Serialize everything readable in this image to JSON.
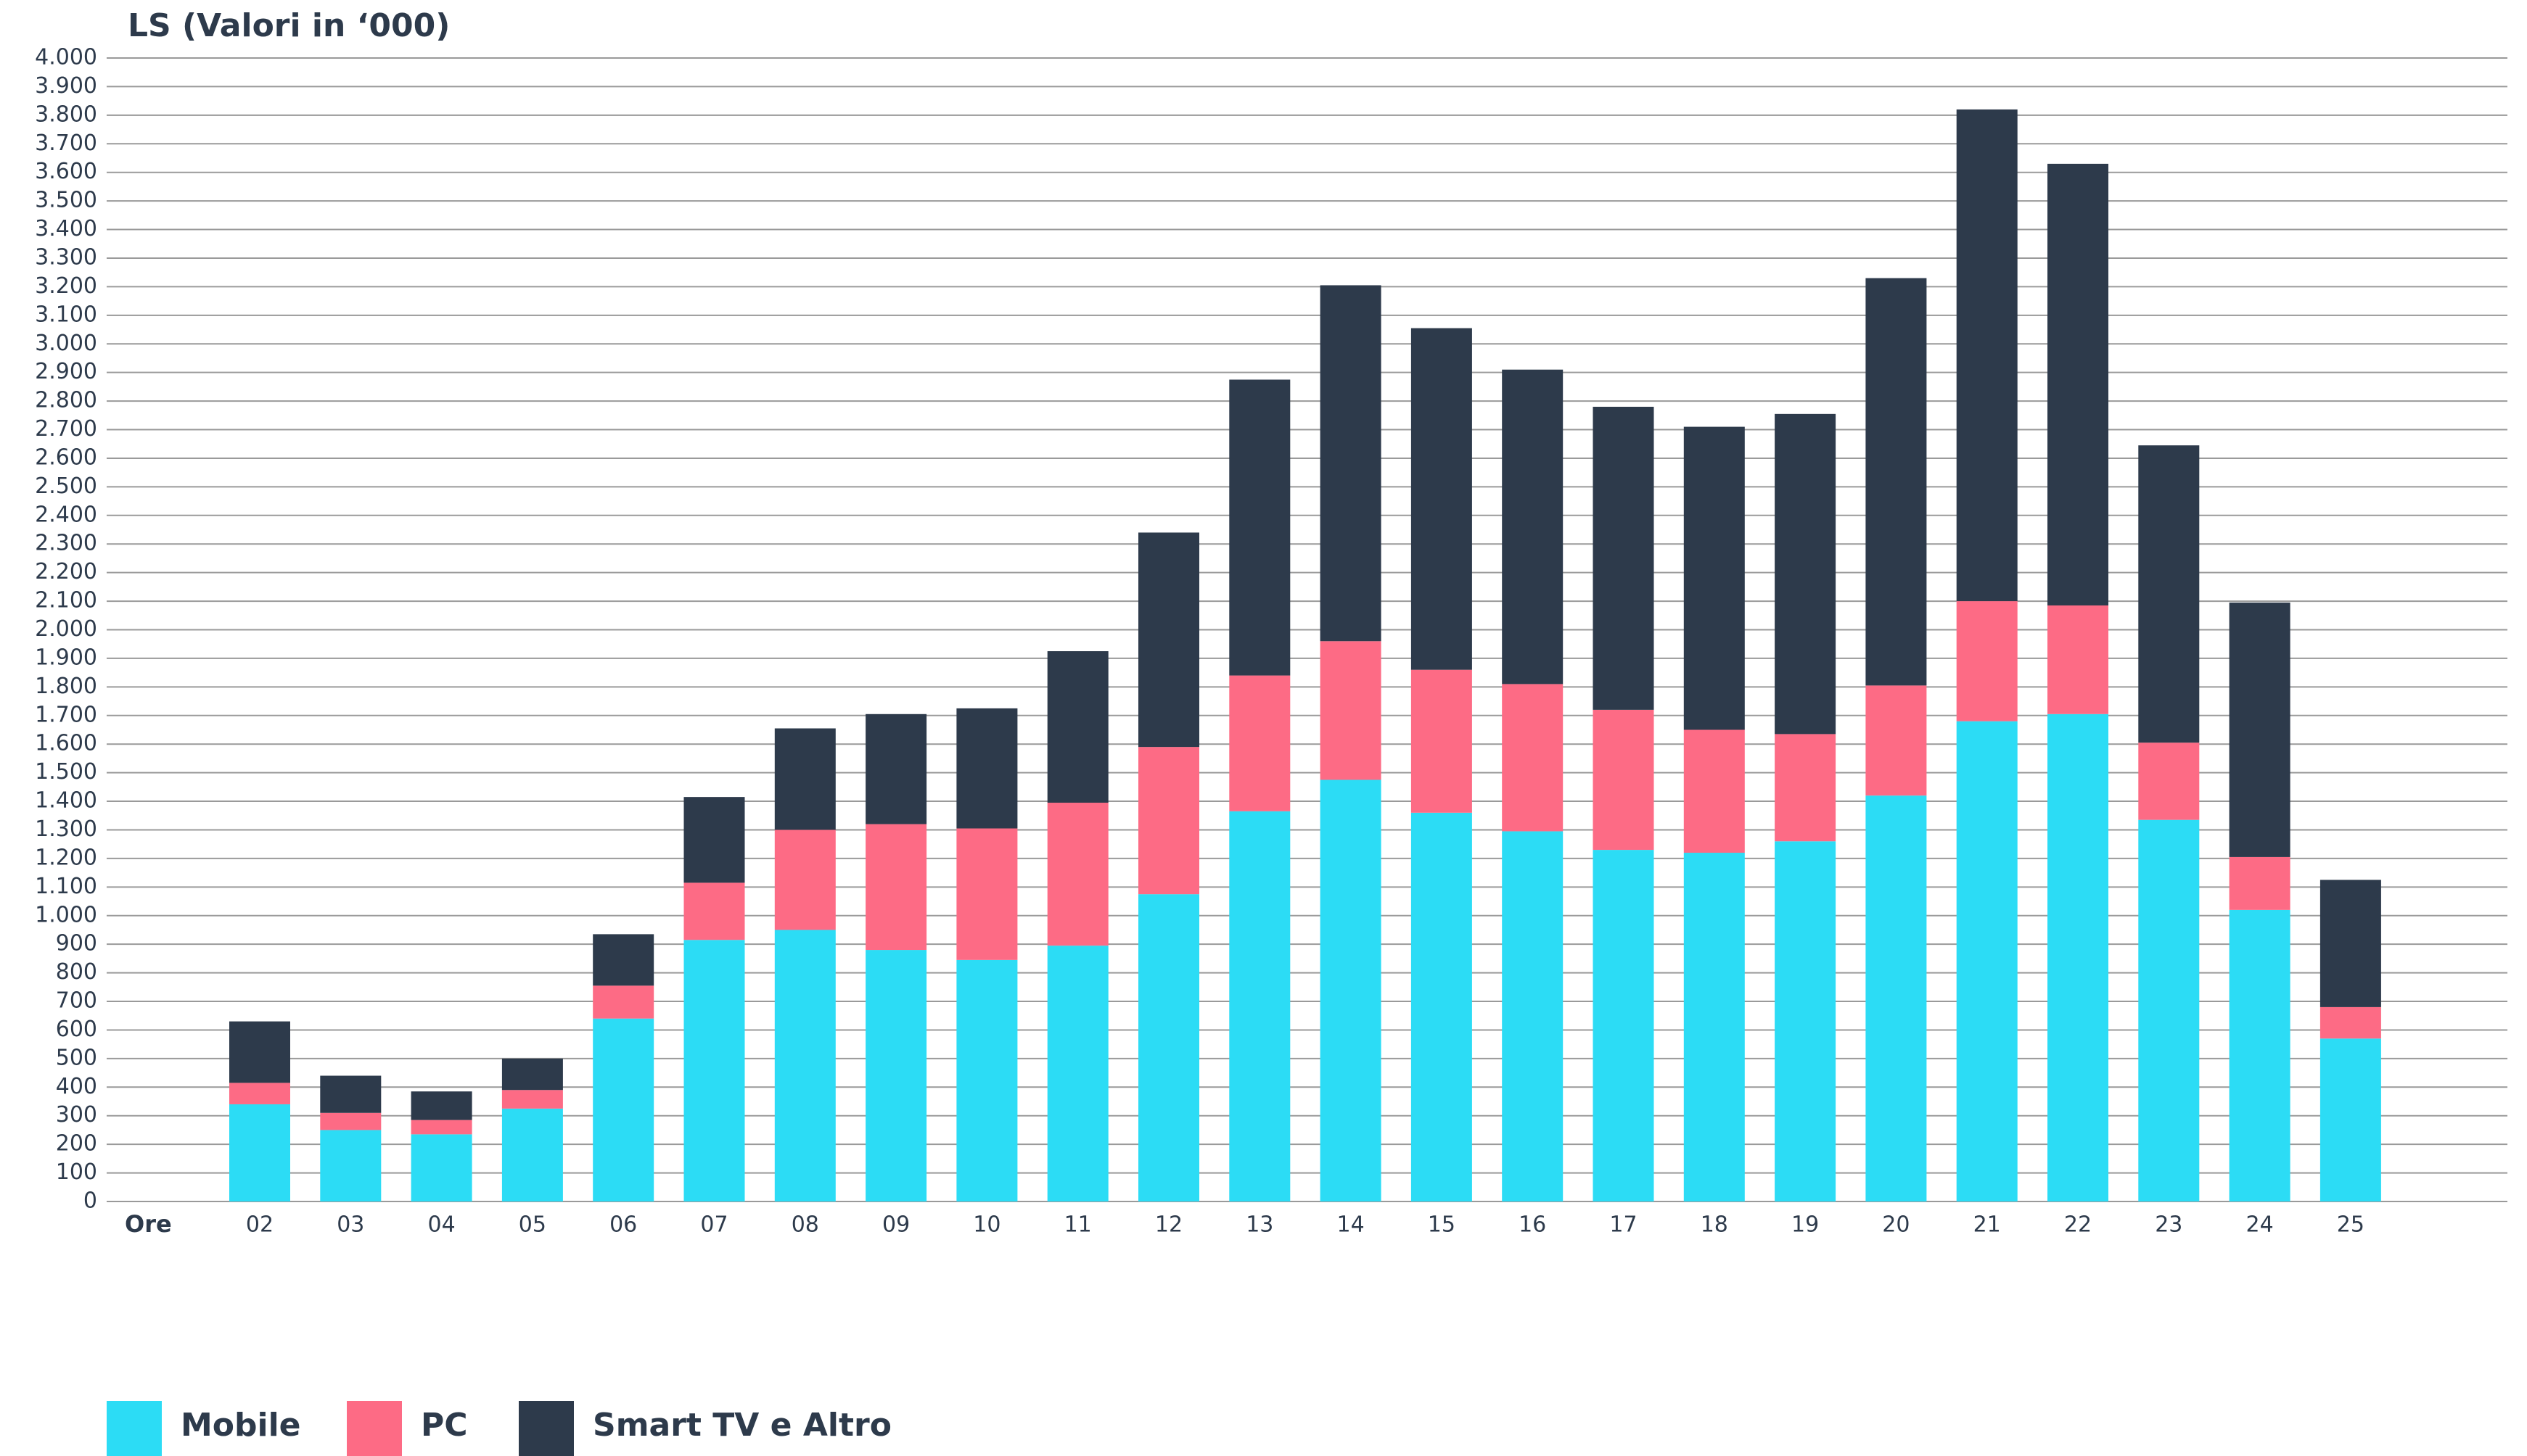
{
  "chart_data": {
    "type": "stacked_bar",
    "title": "LS (Valori in ‘000)",
    "x_label": "Ore",
    "categories": [
      "02",
      "03",
      "04",
      "05",
      "06",
      "07",
      "08",
      "09",
      "10",
      "11",
      "12",
      "13",
      "14",
      "15",
      "16",
      "17",
      "18",
      "19",
      "20",
      "21",
      "22",
      "23",
      "24",
      "25"
    ],
    "series": [
      {
        "name": "Mobile",
        "color": "#2cdcf5",
        "values": [
          340,
          250,
          235,
          325,
          640,
          915,
          950,
          880,
          845,
          895,
          1075,
          1365,
          1475,
          1360,
          1295,
          1230,
          1220,
          1260,
          1420,
          1680,
          1705,
          1335,
          1020,
          570
        ]
      },
      {
        "name": "PC",
        "color": "#fd6b85",
        "values": [
          75,
          60,
          50,
          65,
          115,
          200,
          350,
          440,
          460,
          500,
          515,
          475,
          485,
          500,
          515,
          490,
          430,
          375,
          385,
          420,
          380,
          270,
          185,
          110
        ]
      },
      {
        "name": "Smart TV e Altro",
        "color": "#2d3a4b",
        "values": [
          215,
          130,
          100,
          110,
          180,
          300,
          355,
          385,
          420,
          530,
          750,
          1035,
          1245,
          1195,
          1100,
          1060,
          1060,
          1120,
          1425,
          1720,
          1545,
          1040,
          890,
          445
        ]
      }
    ],
    "ylim": [
      0,
      4000
    ],
    "yticks": [
      0,
      100,
      200,
      300,
      400,
      500,
      600,
      700,
      800,
      900,
      {
        "value": 1000,
        "label": "1.000"
      },
      {
        "value": 1100,
        "label": "1.100"
      },
      {
        "value": 1200,
        "label": "1.200"
      },
      {
        "value": 1300,
        "label": "1.300"
      },
      {
        "value": 1400,
        "label": "1.400"
      },
      {
        "value": 1500,
        "label": "1.500"
      },
      {
        "value": 1600,
        "label": "1.600"
      },
      {
        "value": 1700,
        "label": "1.700"
      },
      {
        "value": 1800,
        "label": "1.800"
      },
      {
        "value": 1900,
        "label": "1.900"
      },
      {
        "value": 2000,
        "label": "2.000"
      },
      {
        "value": 2100,
        "label": "2.100"
      },
      {
        "value": 2200,
        "label": "2.200"
      },
      {
        "value": 2300,
        "label": "2.300"
      },
      {
        "value": 2400,
        "label": "2.400"
      },
      {
        "value": 2500,
        "label": "2.500"
      },
      {
        "value": 2600,
        "label": "2.600"
      },
      {
        "value": 2700,
        "label": "2.700"
      },
      {
        "value": 2800,
        "label": "2.800"
      },
      {
        "value": 2900,
        "label": "2.900"
      },
      {
        "value": 3000,
        "label": "3.000"
      },
      {
        "value": 3100,
        "label": "3.100"
      },
      {
        "value": 3200,
        "label": "3.200"
      },
      {
        "value": 3300,
        "label": "3.300"
      },
      {
        "value": 3400,
        "label": "3.400"
      },
      {
        "value": 3500,
        "label": "3.500"
      },
      {
        "value": 3600,
        "label": "3.600"
      },
      {
        "value": 3700,
        "label": "3.700"
      },
      {
        "value": 3800,
        "label": "3.800"
      },
      {
        "value": 3900,
        "label": "3.900"
      },
      {
        "value": 4000,
        "label": "4.000"
      }
    ],
    "grid": true,
    "legend": "bottom-left"
  }
}
